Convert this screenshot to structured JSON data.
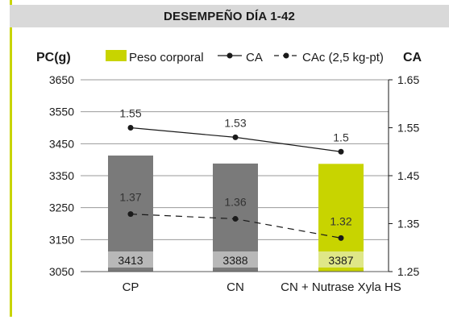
{
  "header": {
    "title": "DESEMPEÑO DÍA 1-42"
  },
  "legend": {
    "bar_label": "Peso corporal",
    "line1_label": "CA",
    "line2_label": "CAc (2,5 kg-pt)",
    "right_axis_title": "CA"
  },
  "colors": {
    "bar_gray": "#7a7a7a",
    "bar_label_box_gray": "#b8b8b8",
    "bar_highlight": "#c8d400",
    "bar_label_box_highlight": "#dfe788",
    "line": "#1a1a1a",
    "grid": "#9a9a9a",
    "accent_border": "#c8d400",
    "header_bg": "#d9d9d9"
  },
  "chart_data": {
    "type": "bar",
    "categories": [
      "CP",
      "CN",
      "CN + Nutrase Xyla HS"
    ],
    "series": [
      {
        "name": "Peso corporal",
        "type": "bar",
        "axis": "left",
        "values": [
          3413,
          3388,
          3387
        ],
        "highlight": [
          false,
          false,
          true
        ]
      },
      {
        "name": "CA",
        "type": "line",
        "axis": "right",
        "style": "solid",
        "values": [
          1.55,
          1.53,
          1.5
        ]
      },
      {
        "name": "CAc (2,5 kg-pt)",
        "type": "line",
        "axis": "right",
        "style": "dashed",
        "values": [
          1.37,
          1.36,
          1.32
        ]
      }
    ],
    "ylabel": "PC(g)",
    "ylabel_right": "CA",
    "ylim": [
      3050,
      3650
    ],
    "yticks": [
      "3650",
      "3550",
      "3450",
      "3350",
      "3250",
      "3150",
      "3050"
    ],
    "ylim_right": [
      1.25,
      1.65
    ],
    "yticks_right": [
      "1.65",
      "1.55",
      "1.45",
      "1.35",
      "1.25"
    ],
    "data_labels_bar": [
      "3413",
      "3388",
      "3387"
    ],
    "data_labels_ca": [
      "1.55",
      "1.53",
      "1.5"
    ],
    "data_labels_cac": [
      "1.37",
      "1.36",
      "1.32"
    ],
    "grid": true,
    "legend_position": "top"
  }
}
